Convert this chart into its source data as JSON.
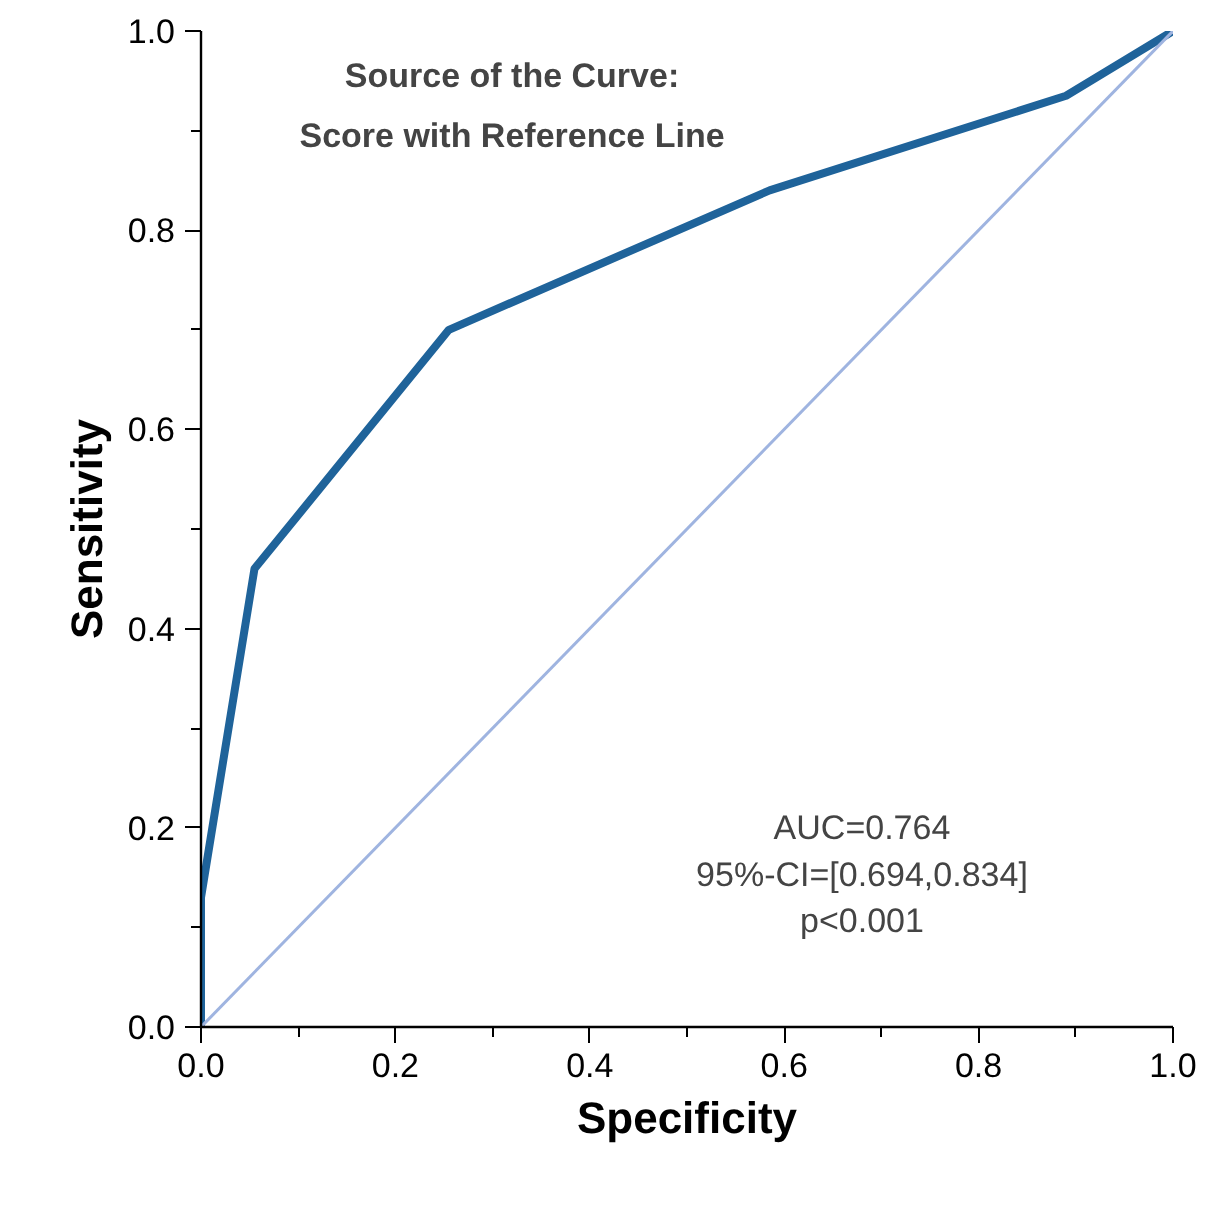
{
  "chart_data": {
    "type": "line",
    "title": "Source of the Curve:\nScore with Reference Line",
    "xlabel": "Specificity",
    "ylabel": "Sensitivity",
    "series": [
      {
        "x": [
          0,
          0,
          0.055,
          0.255,
          0.585,
          0.89,
          1
        ],
        "values": [
          0,
          0.13,
          0.46,
          0.7,
          0.84,
          0.935,
          1
        ],
        "color": "#1f639a"
      },
      {
        "x": [
          0,
          1
        ],
        "values": [
          0,
          1
        ],
        "color": "#9fb4e0"
      }
    ],
    "xlim": [
      0,
      1
    ],
    "ylim": [
      0,
      1
    ],
    "xticks": [
      {
        "value": 0,
        "label": "0.0"
      },
      {
        "value": 0.1,
        "label": null
      },
      0.2,
      {
        "value": 0.3,
        "label": null
      },
      0.4,
      {
        "value": 0.5,
        "label": null
      },
      0.6,
      {
        "value": 0.7,
        "label": null
      },
      0.8,
      {
        "value": 0.9,
        "label": null
      },
      {
        "value": 1,
        "label": "1.0"
      }
    ],
    "yticks": [
      {
        "value": 0,
        "label": "0.0"
      },
      {
        "value": 0.1,
        "label": null
      },
      0.2,
      {
        "value": 0.3,
        "label": null
      },
      0.4,
      {
        "value": 0.5,
        "label": null
      },
      0.6,
      {
        "value": 0.7,
        "label": null
      },
      0.8,
      {
        "value": 0.9,
        "label": null
      },
      {
        "value": 1,
        "label": "1.0"
      }
    ],
    "annotations": [
      "AUC=0.764",
      "95%-CI=[0.694,0.834]",
      "p<0.001"
    ],
    "grid": false
  }
}
